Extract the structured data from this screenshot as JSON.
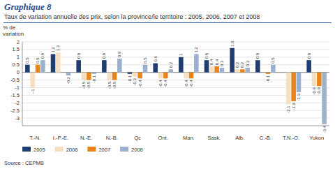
{
  "chart_data": {
    "type": "bar",
    "title": "Graphique 8",
    "subtitle": "Taux de variation annuelle des prix, selon la province/le territoire : 2005, 2006, 2007 et 2008",
    "y_label": "% de\nvariation",
    "source": "Source : CEPMB",
    "categories": [
      "T.-N.",
      "I.-P.-E.",
      "N.-E.",
      "N.-B.",
      "Qc",
      "Ont.",
      "Man.",
      "Sask.",
      "Alb.",
      "C.-B.",
      "T.N.-O.",
      "Yukon"
    ],
    "series": [
      {
        "name": "2005",
        "color": "#1f3d6e",
        "values": [
          0.5,
          1.2,
          0.8,
          0.8,
          -0.1,
          0.6,
          1,
          0.8,
          1.6,
          0.8,
          0,
          0.8
        ],
        "value_labels": [
          "0.5",
          "1.2",
          "0.8",
          "0.8",
          "-0.1",
          "0.6",
          "1",
          "0.8",
          "1.6",
          "0.8",
          null,
          "0.8"
        ]
      },
      {
        "name": "2006",
        "color": "#f5dfc0",
        "values": [
          -1,
          1.3,
          -0.5,
          -0.5,
          -0.3,
          -0.4,
          -0.4,
          0.4,
          0.2,
          0,
          -2.1,
          -0.9
        ],
        "value_labels": [
          "--1",
          "1.3",
          "-0.5",
          "-0.5",
          "-0.3",
          "-0.4",
          "-0.4",
          "0.4",
          "0.2",
          null,
          "-2.1",
          "-0.9"
        ]
      },
      {
        "name": "2007",
        "color": "#e8841a",
        "values": [
          0.5,
          0,
          -0.5,
          -0.5,
          -0.4,
          -0.4,
          -0.4,
          0.4,
          0.2,
          -0.1,
          -1.9,
          -0.9
        ],
        "value_labels": [
          "0.5",
          null,
          "-0.5",
          "-0.5",
          "-0.4",
          "-0.4",
          "-0.4",
          "0.4",
          "0.2",
          "-0.1",
          "-1.9",
          "-0.9"
        ]
      },
      {
        "name": "2008",
        "color": "#9ab0cc",
        "values": [
          0.8,
          -0.2,
          -0.1,
          0.9,
          0.5,
          0.2,
          1.2,
          0.3,
          0.3,
          0.5,
          -1.3,
          -3.4
        ]
      }
    ],
    "ylim": [
      -3.5,
      2.0
    ],
    "yticks": [
      -3,
      -2.5,
      -2,
      -1.5,
      -1,
      -0.5,
      0,
      0.5,
      1,
      1.5,
      2
    ],
    "grid": true,
    "legend": "bottom",
    "data_labels": true
  }
}
